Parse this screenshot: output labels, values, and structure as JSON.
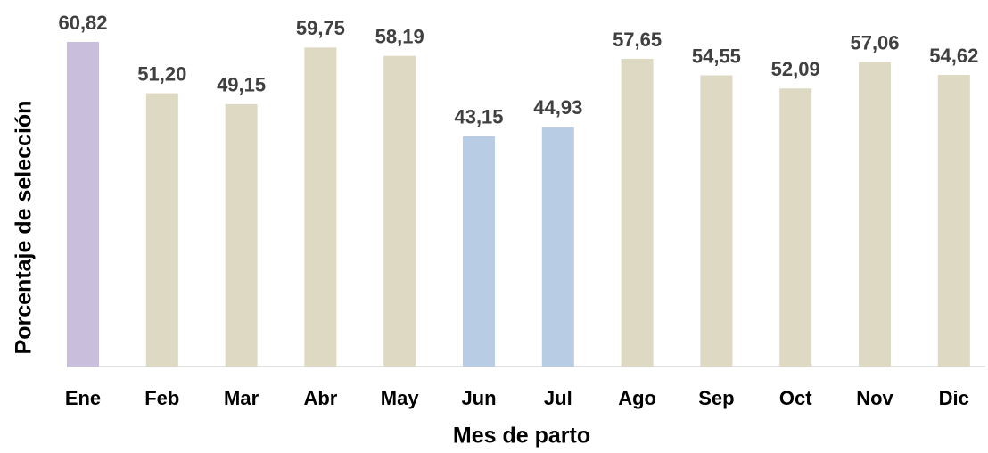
{
  "chart_data": {
    "type": "bar",
    "x_label": "Mes de parto",
    "y_label": "Porcentaje de selección",
    "categories": [
      "Ene",
      "Feb",
      "Mar",
      "Abr",
      "May",
      "Jun",
      "Jul",
      "Ago",
      "Sep",
      "Oct",
      "Nov",
      "Dic"
    ],
    "values": [
      60.82,
      51.2,
      49.15,
      59.75,
      58.19,
      43.15,
      44.93,
      57.65,
      54.55,
      52.09,
      57.06,
      54.62
    ],
    "value_labels": [
      "60,82",
      "51,20",
      "49,15",
      "59,75",
      "58,19",
      "43,15",
      "44,93",
      "57,65",
      "54,55",
      "52,09",
      "57,06",
      "54,62"
    ],
    "colors": [
      "#c9bedb",
      "#ddd9c3",
      "#ddd9c3",
      "#ddd9c3",
      "#ddd9c3",
      "#b8cce4",
      "#b8cce4",
      "#ddd9c3",
      "#ddd9c3",
      "#ddd9c3",
      "#ddd9c3",
      "#ddd9c3"
    ],
    "ylim": [
      0,
      67
    ]
  }
}
